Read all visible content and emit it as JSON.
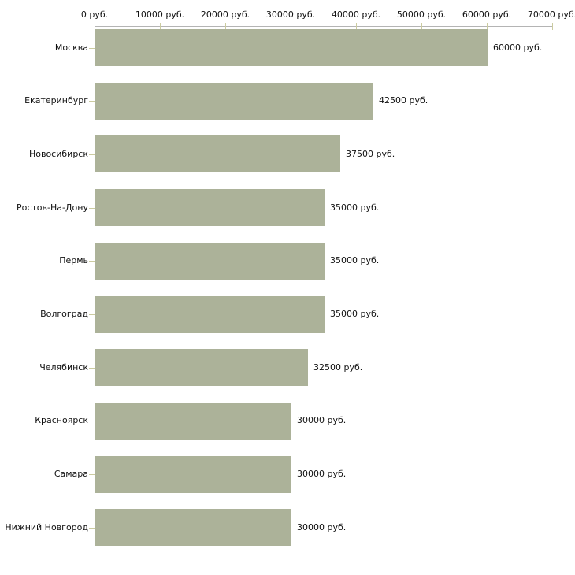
{
  "chart_data": {
    "type": "bar",
    "orientation": "horizontal",
    "title": "",
    "xlabel": "",
    "ylabel": "",
    "categories": [
      "Москва",
      "Екатеринбург",
      "Новосибирск",
      "Ростов-На-Дону",
      "Пермь",
      "Волгоград",
      "Челябинск",
      "Красноярск",
      "Самара",
      "Нижний Новгород"
    ],
    "values": [
      60000,
      42500,
      37500,
      35000,
      35000,
      35000,
      32500,
      30000,
      30000,
      30000
    ],
    "value_labels": [
      "60000 руб.",
      "42500 руб.",
      "37500 руб.",
      "35000 руб.",
      "35000 руб.",
      "35000 руб.",
      "32500 руб.",
      "30000 руб.",
      "30000 руб.",
      "30000 руб."
    ],
    "x_tick_values": [
      0,
      10000,
      20000,
      30000,
      40000,
      50000,
      60000,
      70000
    ],
    "x_tick_labels": [
      "0 руб.",
      "10000 руб.",
      "20000 руб.",
      "30000 руб.",
      "40000 руб.",
      "50000 руб.",
      "60000 руб.",
      "70000 руб."
    ],
    "xlim": [
      0,
      70000
    ],
    "axis_position": "top",
    "grid": false,
    "legend": false,
    "value_suffix": " руб."
  },
  "style": {
    "bar_color": "#acb299",
    "axis_color": "#b4b4b4",
    "tick_color": "#cbcb9f",
    "text_color": "#111111",
    "background": "#ffffff"
  }
}
